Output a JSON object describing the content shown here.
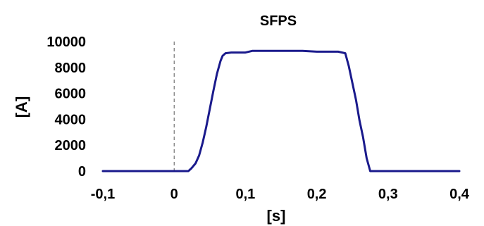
{
  "chart_data": {
    "type": "line",
    "title": "SFPS",
    "xlabel": "[s]",
    "ylabel": "[A]",
    "xlim": [
      -0.1,
      0.4
    ],
    "ylim": [
      0,
      10000
    ],
    "x_ticks": [
      "-0,1",
      "0",
      "0,1",
      "0,2",
      "0,3",
      "0,4"
    ],
    "x_tick_values": [
      -0.1,
      0,
      0.1,
      0.2,
      0.3,
      0.4
    ],
    "y_ticks": [
      "0",
      "2000",
      "4000",
      "6000",
      "8000",
      "10000"
    ],
    "y_tick_values": [
      0,
      2000,
      4000,
      6000,
      8000,
      10000
    ],
    "grid": false,
    "legend": "none",
    "vertical_reference_line_x": 0,
    "line_color": "#1a1a8c",
    "series": [
      {
        "x": [
          -0.1,
          0.02,
          0.024,
          0.03,
          0.035,
          0.04,
          0.045,
          0.05,
          0.055,
          0.06,
          0.065,
          0.068,
          0.072,
          0.08,
          0.1,
          0.11,
          0.15,
          0.18,
          0.2,
          0.23,
          0.24,
          0.245,
          0.25,
          0.255,
          0.26,
          0.265,
          0.27,
          0.275,
          0.4
        ],
        "y": [
          0,
          0,
          200,
          600,
          1200,
          2200,
          3400,
          4800,
          6200,
          7500,
          8500,
          8900,
          9100,
          9150,
          9150,
          9280,
          9280,
          9280,
          9220,
          9220,
          9100,
          8100,
          6800,
          5500,
          3900,
          2600,
          1000,
          0,
          0
        ]
      }
    ]
  }
}
